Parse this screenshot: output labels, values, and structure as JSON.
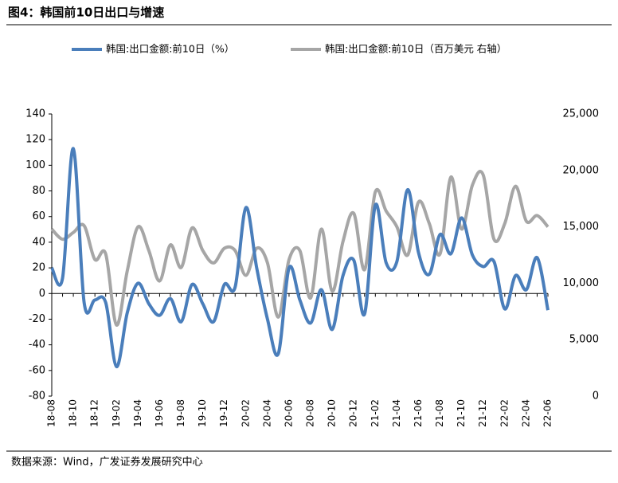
{
  "chart_data": {
    "type": "line",
    "title": "图4：韩国前10日出口与增速",
    "source": "数据来源：Wind，广发证券发展研究中心",
    "categories": [
      "18-08",
      null,
      "18-10",
      null,
      "18-12",
      null,
      "19-02",
      null,
      "19-04",
      null,
      "19-06",
      null,
      "19-08",
      null,
      "19-10",
      null,
      "19-12",
      null,
      "20-02",
      null,
      "20-04",
      null,
      "20-06",
      null,
      "20-08",
      null,
      "20-10",
      null,
      "20-12",
      null,
      "21-02",
      null,
      "21-04",
      null,
      "21-06",
      null,
      "21-08",
      null,
      "21-10",
      null,
      "21-12",
      null,
      "22-02",
      null,
      "22-04",
      null,
      "22-06"
    ],
    "series": [
      {
        "name": "韩国:出口金额:前10日（%）",
        "color": "#4a7ebb",
        "values": [
          20,
          12,
          113,
          -7,
          -5,
          -7,
          -57,
          -15,
          8,
          -8,
          -17,
          -4,
          -22,
          7,
          -8,
          -22,
          7,
          5,
          67,
          20,
          -20,
          -47,
          20,
          -5,
          -23,
          3,
          -28,
          14,
          26,
          -16,
          69,
          24,
          25,
          81,
          32,
          15,
          46,
          31,
          59,
          30,
          21,
          25,
          -12,
          14,
          3,
          28,
          -13
        ]
      },
      {
        "name": "韩国:出口金额:前10日（百万美元 右轴）",
        "color": "#a6a6a6",
        "axis": "y2",
        "values": [
          14800,
          13900,
          14500,
          15100,
          12100,
          12600,
          6300,
          11100,
          15000,
          12900,
          10200,
          13400,
          11400,
          14900,
          12900,
          11800,
          13100,
          12900,
          10700,
          13100,
          11800,
          7000,
          12100,
          12900,
          8700,
          14800,
          9300,
          13700,
          16200,
          11200,
          18100,
          16400,
          15000,
          12500,
          17200,
          15300,
          12600,
          19400,
          14800,
          18700,
          19600,
          13900,
          15300,
          18600,
          15500,
          16000,
          15000
        ]
      }
    ],
    "ylim": [
      -80,
      140
    ],
    "yticks": [
      -80,
      -60,
      -40,
      -20,
      0,
      20,
      40,
      60,
      80,
      100,
      120,
      140
    ],
    "y2lim": [
      0,
      25000
    ],
    "y2ticks": [
      0,
      {
        "value": 5000,
        "label": "5,000"
      },
      {
        "value": 10000,
        "label": "10,000"
      },
      {
        "value": 15000,
        "label": "15,000"
      },
      {
        "value": 20000,
        "label": "20,000"
      },
      {
        "value": 25000,
        "label": "25,000"
      }
    ],
    "legend": "top"
  }
}
